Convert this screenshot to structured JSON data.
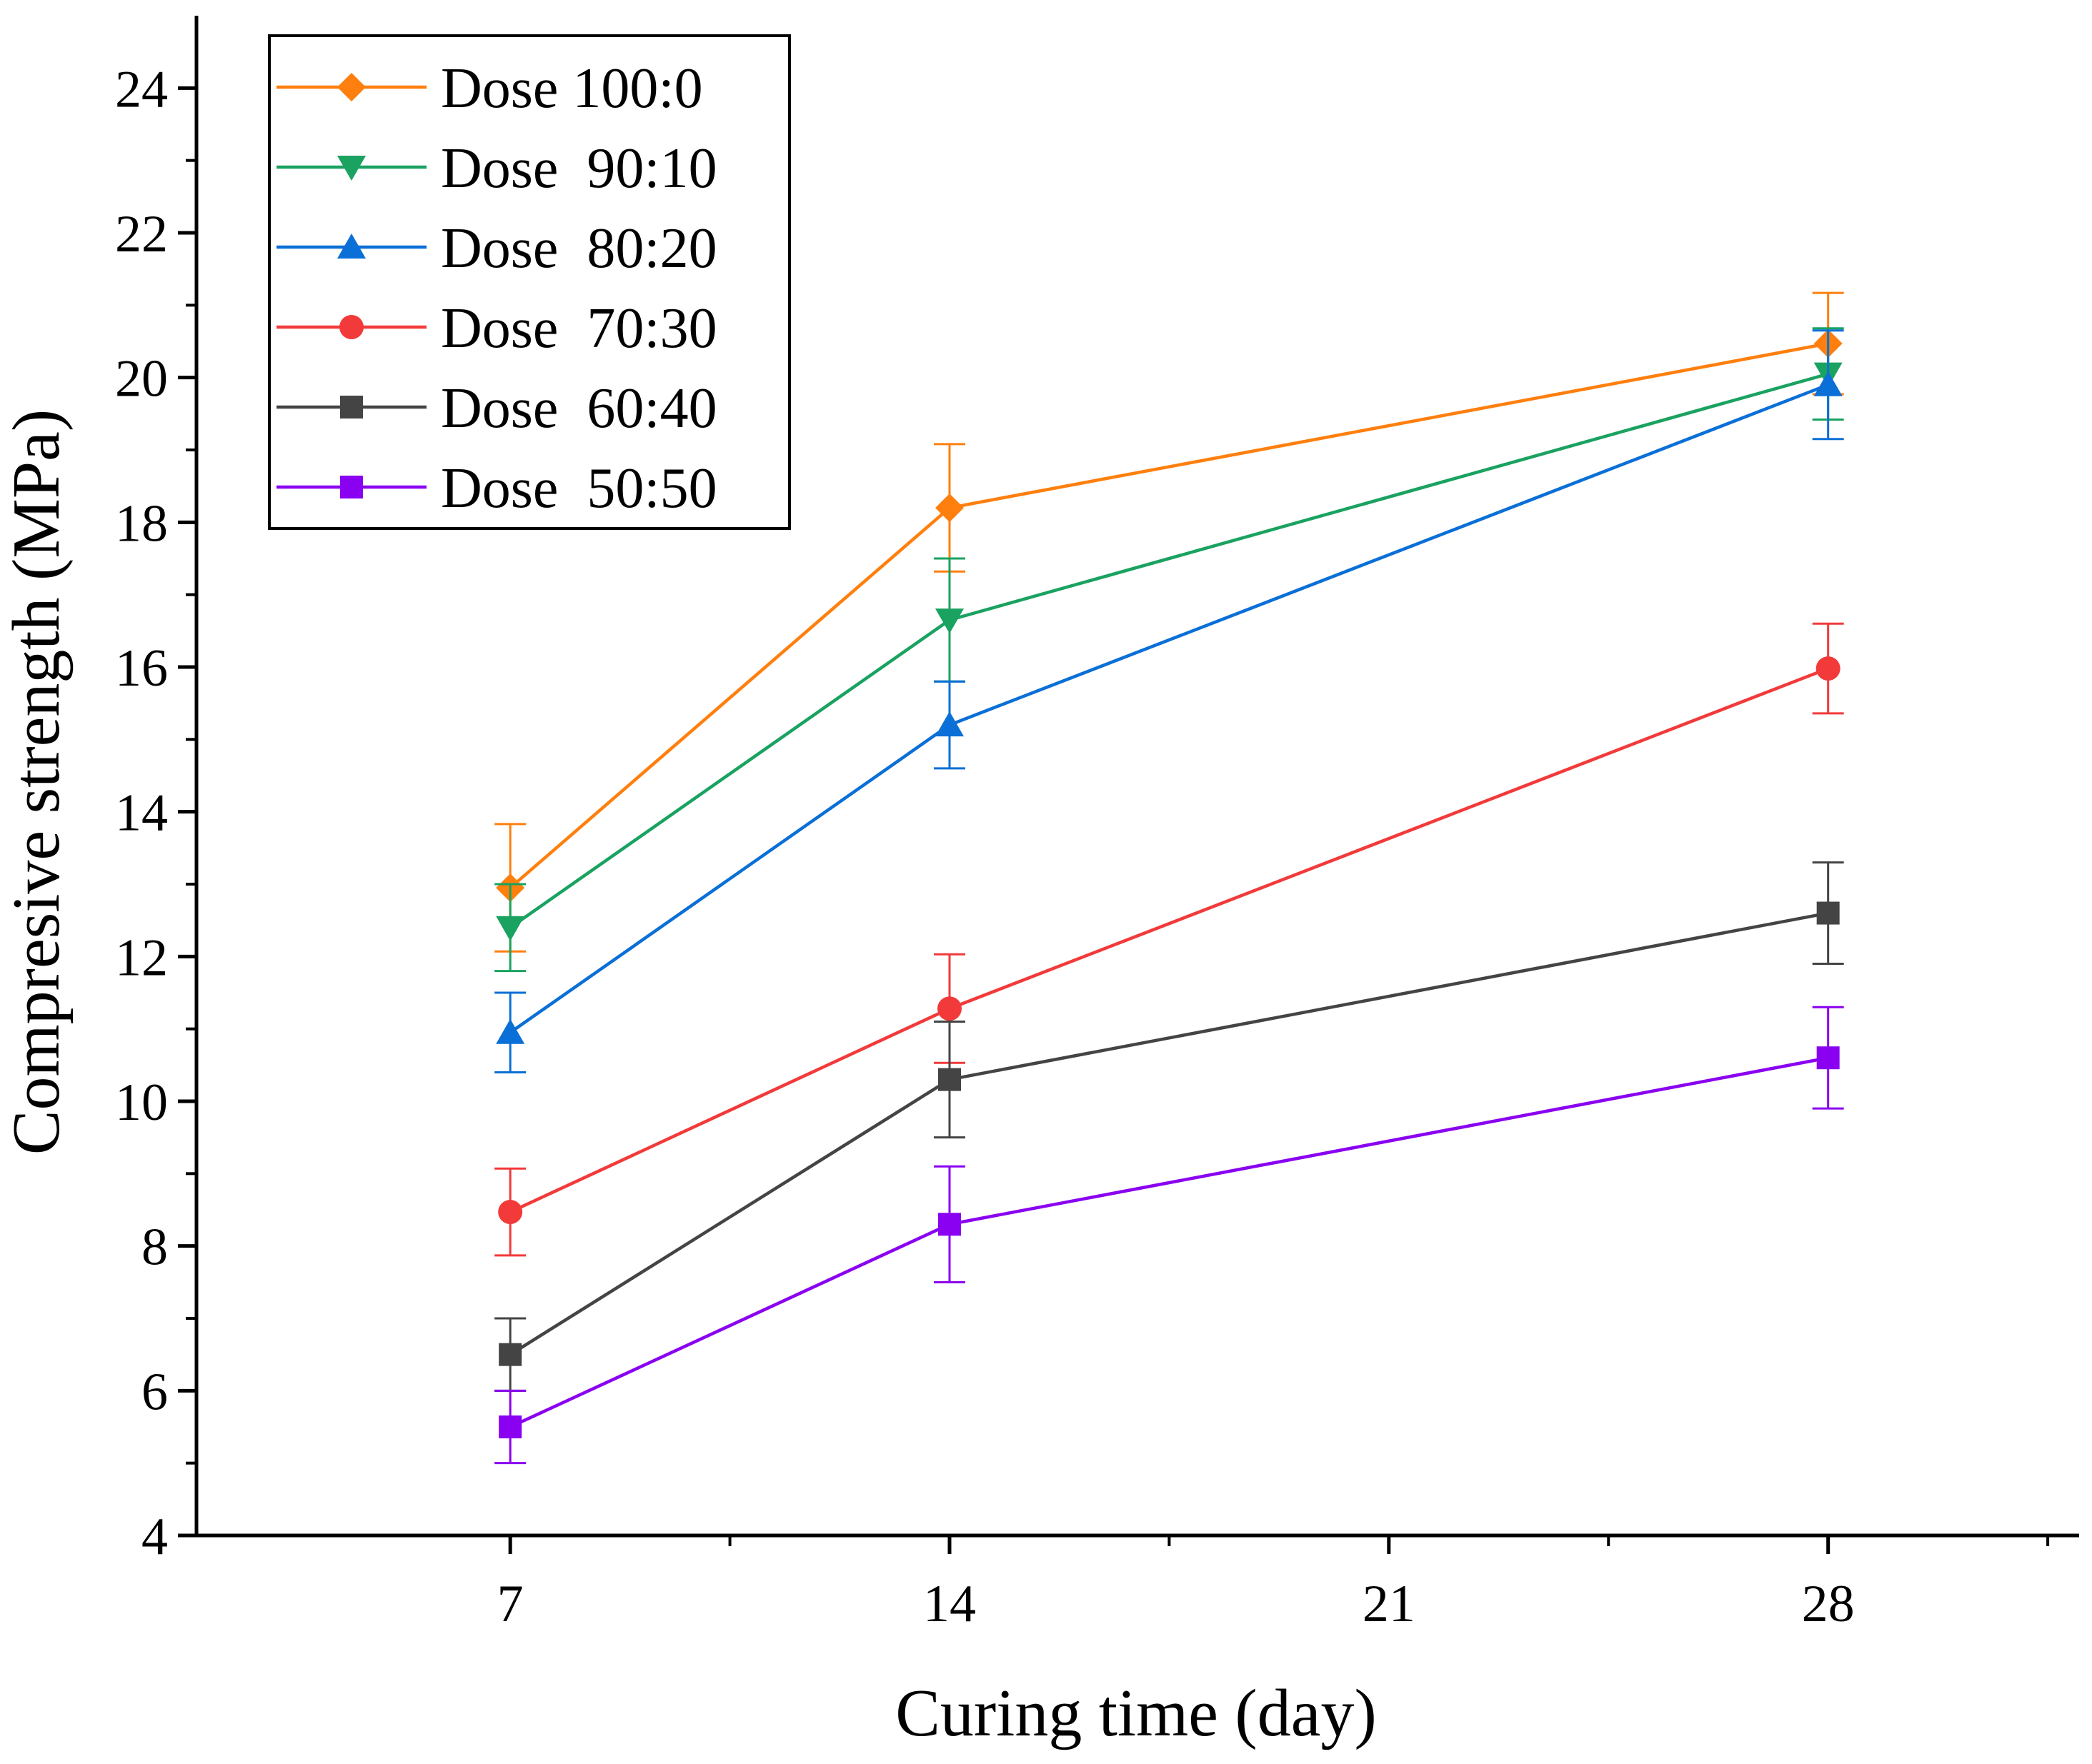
{
  "chart_data": {
    "type": "line",
    "title": "",
    "xlabel": "Curing time (day)",
    "ylabel": "Compresive strength (MPa)",
    "xlim": [
      2,
      32
    ],
    "ylim": [
      4,
      25
    ],
    "x_ticks": [
      7,
      14,
      21,
      28
    ],
    "x_tick_labels": [
      "7",
      "14",
      "21",
      "28"
    ],
    "y_ticks": [
      4,
      6,
      8,
      10,
      12,
      14,
      16,
      18,
      20,
      22,
      24
    ],
    "y_tick_labels": [
      "4",
      "6",
      "8",
      "10",
      "12",
      "14",
      "16",
      "18",
      "20",
      "22",
      "24"
    ],
    "grid": false,
    "legend_position": "top-left",
    "x": [
      7,
      14,
      28
    ],
    "series": [
      {
        "name": "Dose 100:0",
        "color": "#ff7f0e",
        "marker": "diamond",
        "values": [
          12.95,
          18.2,
          20.47
        ],
        "errors": [
          0.88,
          0.88,
          0.7
        ]
      },
      {
        "name": "Dose  90:10",
        "color": "#1aa260",
        "marker": "triangle-down",
        "values": [
          12.4,
          16.65,
          20.05
        ],
        "errors": [
          0.6,
          0.85,
          0.63
        ]
      },
      {
        "name": "Dose  80:20",
        "color": "#0a6fd6",
        "marker": "triangle-up",
        "values": [
          10.95,
          15.2,
          19.9
        ],
        "errors": [
          0.55,
          0.6,
          0.75
        ]
      },
      {
        "name": "Dose  70:30",
        "color": "#f23a3a",
        "marker": "circle",
        "values": [
          8.47,
          11.28,
          15.98
        ],
        "errors": [
          0.6,
          0.75,
          0.62
        ]
      },
      {
        "name": "Dose  60:40",
        "color": "#444444",
        "marker": "square",
        "values": [
          6.5,
          10.3,
          12.6
        ],
        "errors": [
          0.5,
          0.8,
          0.7
        ]
      },
      {
        "name": "Dose  50:50",
        "color": "#8a00f0",
        "marker": "square",
        "values": [
          5.5,
          8.3,
          10.6
        ],
        "errors": [
          0.5,
          0.8,
          0.7
        ]
      }
    ]
  }
}
